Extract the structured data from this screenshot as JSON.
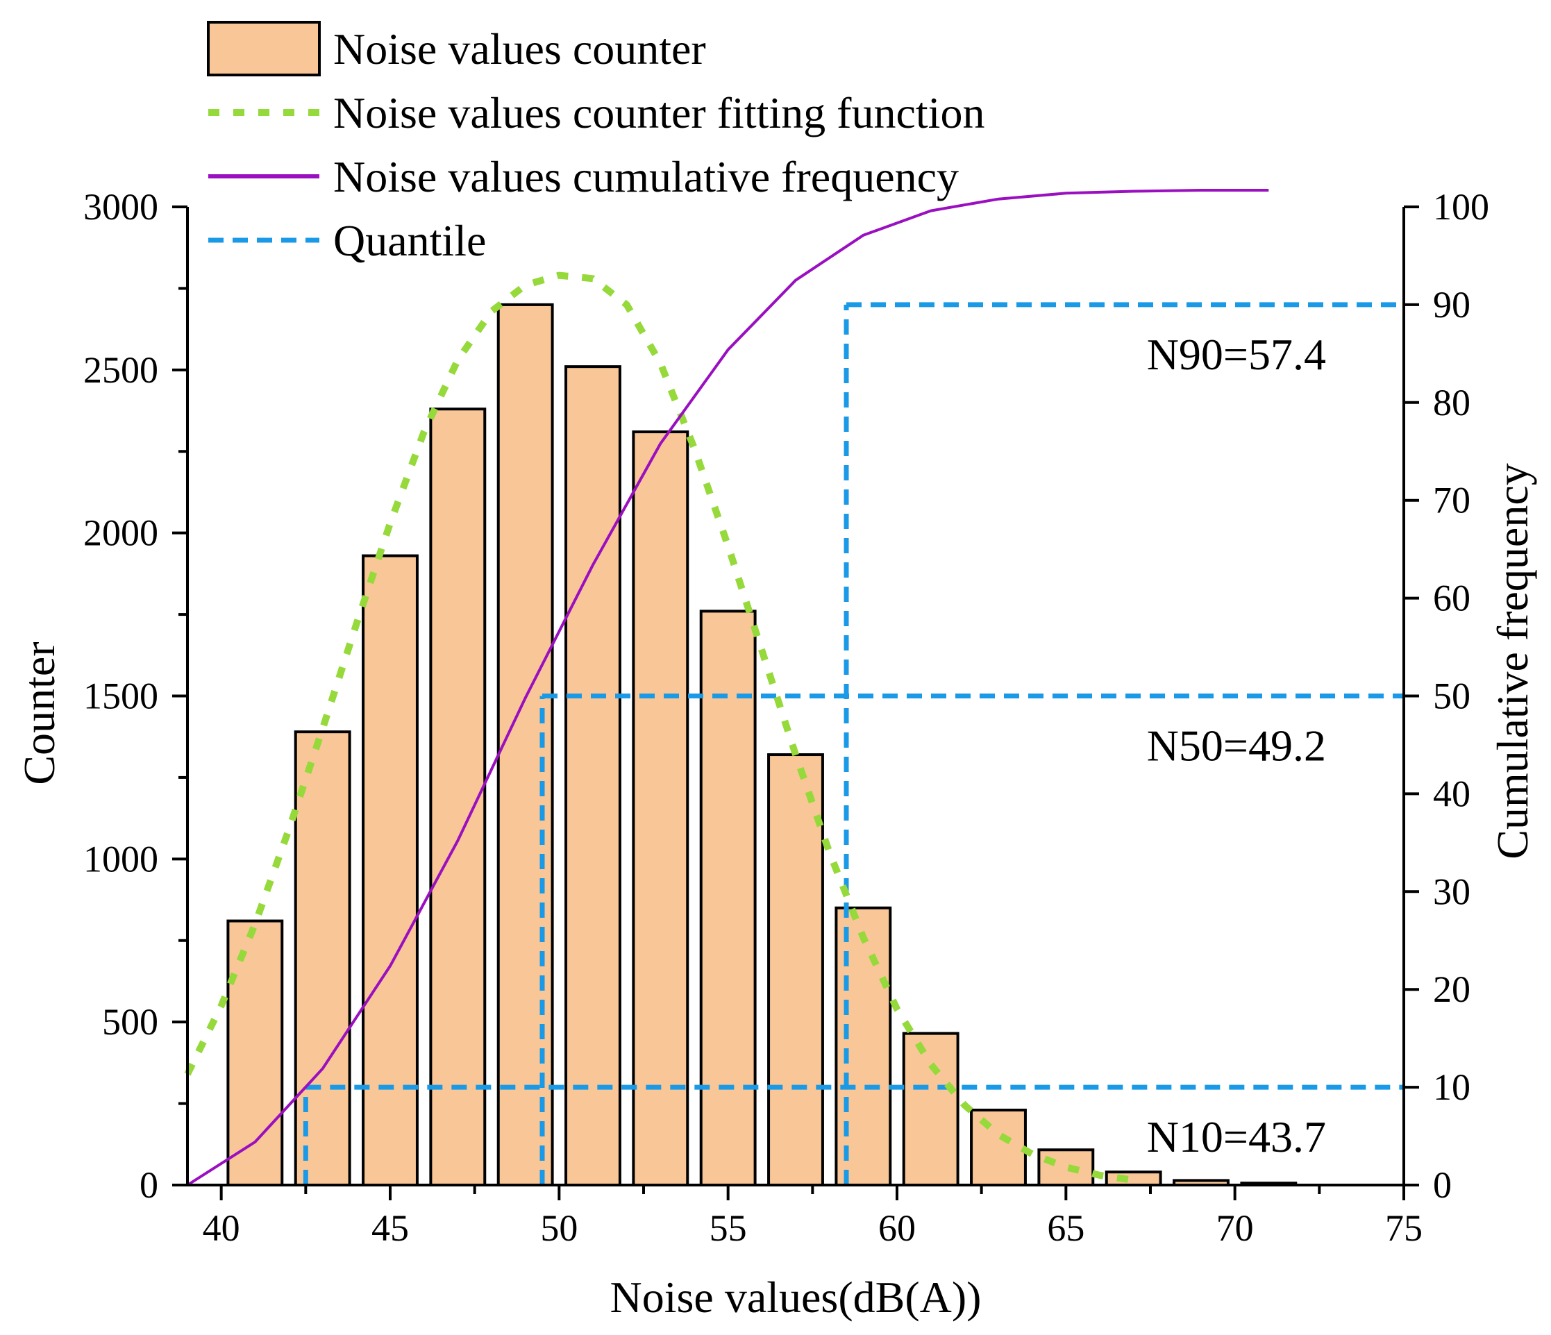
{
  "chart_data": {
    "type": "bar",
    "title": "",
    "xlabel": "Noise values(dB(A))",
    "ylabel": "Counter",
    "y2label": "Cumulative frequency",
    "xlim": [
      39,
      75
    ],
    "ylim": [
      0,
      3000
    ],
    "y2lim": [
      0,
      100
    ],
    "x_ticks": [
      40,
      45,
      50,
      55,
      60,
      65,
      70,
      75
    ],
    "y_ticks": [
      0,
      500,
      1000,
      1500,
      2000,
      2500,
      3000
    ],
    "y2_ticks": [
      0,
      10,
      20,
      30,
      40,
      50,
      60,
      70,
      80,
      90,
      100
    ],
    "bar_width": 1.6,
    "legend_position": "top-left",
    "colors": {
      "bar_fill": "#f9c797",
      "bar_edge": "#000000",
      "fit_line": "#95d93a",
      "cumulative_line": "#9a0fbf",
      "quantile_line": "#1a9ae6"
    },
    "legend": [
      {
        "label": "Noise values counter",
        "kind": "bar"
      },
      {
        "label": "Noise values counter fitting function",
        "kind": "fit"
      },
      {
        "label": "Noise values cumulative frequency",
        "kind": "cumulative"
      },
      {
        "label": "Quantile",
        "kind": "quantile"
      }
    ],
    "series": [
      {
        "name": "Noise values counter",
        "type": "bar",
        "x": [
          41,
          43,
          45,
          47,
          49,
          51,
          53,
          55,
          57,
          59,
          61,
          63,
          65,
          67,
          69,
          71
        ],
        "values": [
          810,
          1390,
          1930,
          2380,
          2700,
          2510,
          2310,
          1760,
          1320,
          850,
          465,
          230,
          108,
          40,
          14,
          6
        ]
      },
      {
        "name": "Noise values counter fitting function",
        "type": "line",
        "axis": "left",
        "x": [
          39,
          40,
          41,
          42,
          43,
          44,
          45,
          46,
          47,
          48,
          49,
          50,
          51,
          52,
          53,
          54,
          55,
          56,
          57,
          58,
          59,
          60,
          61,
          62,
          63,
          64,
          65,
          66,
          67
        ],
        "values": [
          340,
          550,
          800,
          1090,
          1400,
          1720,
          2030,
          2310,
          2530,
          2680,
          2760,
          2790,
          2780,
          2700,
          2520,
          2260,
          1960,
          1640,
          1320,
          1020,
          760,
          540,
          370,
          245,
          155,
          95,
          55,
          30,
          15
        ]
      },
      {
        "name": "Noise values cumulative frequency",
        "type": "line",
        "axis": "right",
        "x": [
          39,
          41,
          43,
          45,
          47,
          49,
          51,
          53,
          55,
          57,
          59,
          61,
          63,
          65,
          67,
          69,
          71
        ],
        "values": [
          0,
          4.4,
          11.9,
          22.4,
          35.2,
          49.8,
          63.4,
          75.8,
          85.4,
          92.5,
          97.1,
          99.6,
          100.8,
          101.4,
          101.6,
          101.7,
          101.7
        ]
      }
    ],
    "quantiles": [
      {
        "label": "N10=43.7",
        "x": 42.5,
        "level": 10
      },
      {
        "label": "N50=49.2",
        "x": 49.5,
        "level": 50
      },
      {
        "label": "N90=57.4",
        "x": 58.5,
        "level": 90
      }
    ]
  }
}
